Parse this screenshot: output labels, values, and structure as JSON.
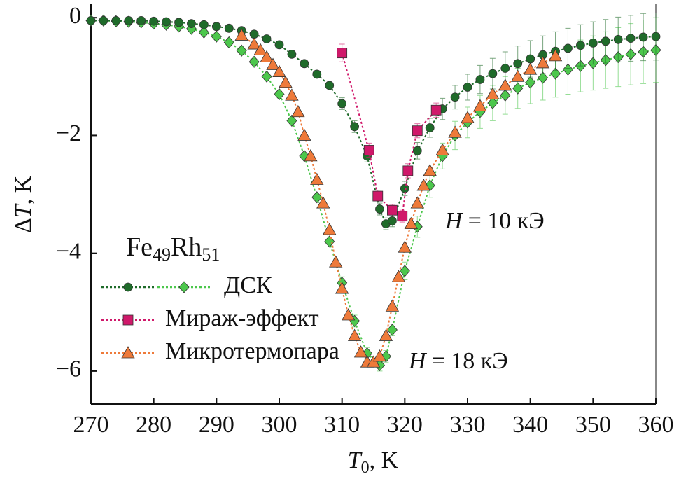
{
  "chart_data": {
    "type": "scatter",
    "xlabel_parts": [
      "T",
      "0",
      ", K"
    ],
    "ylabel_parts": [
      "Δ",
      "T",
      ", K"
    ],
    "legend_title_parts": [
      "Fe",
      "49",
      "Rh",
      "51"
    ],
    "annotations": [
      {
        "symbol": "H",
        "text": "= 10 кЭ"
      },
      {
        "symbol": "H",
        "text": "= 18 кЭ"
      }
    ],
    "xlim": [
      270,
      360
    ],
    "ylim": [
      -6.56,
      0.24
    ],
    "xticks": [
      270,
      280,
      290,
      300,
      310,
      320,
      330,
      340,
      350,
      360
    ],
    "yticks": [
      0,
      {
        "value": -2,
        "label": "−2"
      },
      {
        "value": -4,
        "label": "−4"
      },
      {
        "value": -6,
        "label": "−6"
      }
    ],
    "series": [
      {
        "name": "ДСК",
        "color": "#1f6b2a",
        "marker": "circle",
        "x": [
          270,
          272,
          274,
          276,
          278,
          280,
          282,
          284,
          286,
          288,
          290,
          292,
          294,
          296,
          298,
          300,
          302,
          304,
          306,
          308,
          310,
          312,
          314,
          316,
          317,
          318,
          320,
          322,
          324,
          326,
          328,
          330,
          332,
          334,
          336,
          338,
          340,
          342,
          344,
          346,
          348,
          350,
          352,
          354,
          356,
          358,
          360
        ],
        "values": [
          -0.05,
          -0.05,
          -0.05,
          -0.05,
          -0.05,
          -0.06,
          -0.07,
          -0.08,
          -0.1,
          -0.12,
          -0.15,
          -0.18,
          -0.22,
          -0.28,
          -0.36,
          -0.46,
          -0.62,
          -0.78,
          -0.96,
          -1.15,
          -1.46,
          -1.85,
          -2.35,
          -3.25,
          -3.5,
          -3.45,
          -2.9,
          -2.26,
          -1.87,
          -1.55,
          -1.35,
          -1.18,
          -1.05,
          -0.95,
          -0.86,
          -0.78,
          -0.7,
          -0.63,
          -0.57,
          -0.52,
          -0.47,
          -0.43,
          -0.4,
          -0.37,
          -0.35,
          -0.33,
          -0.32
        ],
        "errors": [
          0.05,
          0.05,
          0.05,
          0.05,
          0.05,
          0.05,
          0.05,
          0.05,
          0.05,
          0.05,
          0.05,
          0.05,
          0.05,
          0.05,
          0.05,
          0.05,
          0.05,
          0.05,
          0.05,
          0.05,
          0.1,
          0.1,
          0.1,
          0.1,
          0.1,
          0.1,
          0.12,
          0.14,
          0.16,
          0.18,
          0.2,
          0.22,
          0.24,
          0.26,
          0.28,
          0.3,
          0.31,
          0.32,
          0.33,
          0.34,
          0.35,
          0.36,
          0.37,
          0.38,
          0.39,
          0.4,
          0.4
        ]
      },
      {
        "color": "#4cc74c",
        "marker": "diamond",
        "x": [
          270,
          272,
          274,
          276,
          278,
          280,
          282,
          284,
          286,
          288,
          290,
          292,
          294,
          296,
          298,
          300,
          302,
          304,
          306,
          308,
          310,
          312,
          314,
          316,
          317,
          318,
          320,
          322,
          324,
          326,
          328,
          330,
          332,
          334,
          336,
          338,
          340,
          342,
          344,
          346,
          348,
          350,
          352,
          354,
          356,
          358,
          360
        ],
        "values": [
          -0.05,
          -0.05,
          -0.06,
          -0.07,
          -0.08,
          -0.1,
          -0.12,
          -0.15,
          -0.19,
          -0.25,
          -0.32,
          -0.42,
          -0.56,
          -0.75,
          -1.0,
          -1.3,
          -1.75,
          -2.35,
          -3.05,
          -3.8,
          -4.5,
          -5.15,
          -5.7,
          -5.9,
          -5.75,
          -5.3,
          -4.3,
          -3.55,
          -2.85,
          -2.35,
          -2.0,
          -1.78,
          -1.6,
          -1.45,
          -1.32,
          -1.2,
          -1.1,
          -1.02,
          -0.95,
          -0.88,
          -0.82,
          -0.77,
          -0.72,
          -0.67,
          -0.62,
          -0.58,
          -0.55
        ],
        "errors": [
          0.05,
          0.05,
          0.05,
          0.05,
          0.05,
          0.05,
          0.05,
          0.05,
          0.05,
          0.05,
          0.05,
          0.05,
          0.05,
          0.05,
          0.05,
          0.05,
          0.05,
          0.05,
          0.05,
          0.05,
          0.1,
          0.1,
          0.1,
          0.1,
          0.1,
          0.1,
          0.15,
          0.18,
          0.2,
          0.22,
          0.24,
          0.26,
          0.28,
          0.3,
          0.32,
          0.34,
          0.36,
          0.38,
          0.4,
          0.42,
          0.44,
          0.46,
          0.48,
          0.5,
          0.52,
          0.54,
          0.55
        ]
      },
      {
        "name": "Мираж-эффект",
        "color": "#d0186a",
        "marker": "square",
        "x": [
          310,
          314.3,
          315.7,
          318,
          319.6,
          320.5,
          322,
          325
        ],
        "values": [
          -0.6,
          -2.25,
          -3.03,
          -3.27,
          -3.37,
          -2.6,
          -1.92,
          -1.57
        ],
        "errors": [
          0.15,
          0.12,
          0.1,
          0.1,
          0.1,
          0.12,
          0.12,
          0.12
        ]
      },
      {
        "name": "Микротермопара",
        "color": "#ee7a3a",
        "marker": "triangle",
        "x": [
          294,
          296,
          297,
          298,
          299,
          300,
          301,
          302,
          303,
          304,
          305,
          306,
          307,
          308,
          309,
          310,
          311,
          312,
          313,
          314,
          315,
          316,
          317,
          318,
          319,
          320,
          321,
          322,
          323,
          324,
          326,
          328,
          330,
          332,
          334,
          336,
          338,
          340,
          342,
          344
        ],
        "values": [
          -0.3,
          -0.45,
          -0.55,
          -0.67,
          -0.8,
          -0.92,
          -1.1,
          -1.32,
          -1.6,
          -2.0,
          -2.35,
          -2.75,
          -3.15,
          -3.6,
          -4.15,
          -4.6,
          -5.05,
          -5.4,
          -5.68,
          -5.85,
          -5.85,
          -5.75,
          -5.4,
          -4.9,
          -4.4,
          -3.9,
          -3.5,
          -3.15,
          -2.85,
          -2.6,
          -2.25,
          -1.95,
          -1.7,
          -1.5,
          -1.3,
          -1.15,
          -1.0,
          -0.88,
          -0.77,
          -0.65
        ]
      }
    ]
  }
}
